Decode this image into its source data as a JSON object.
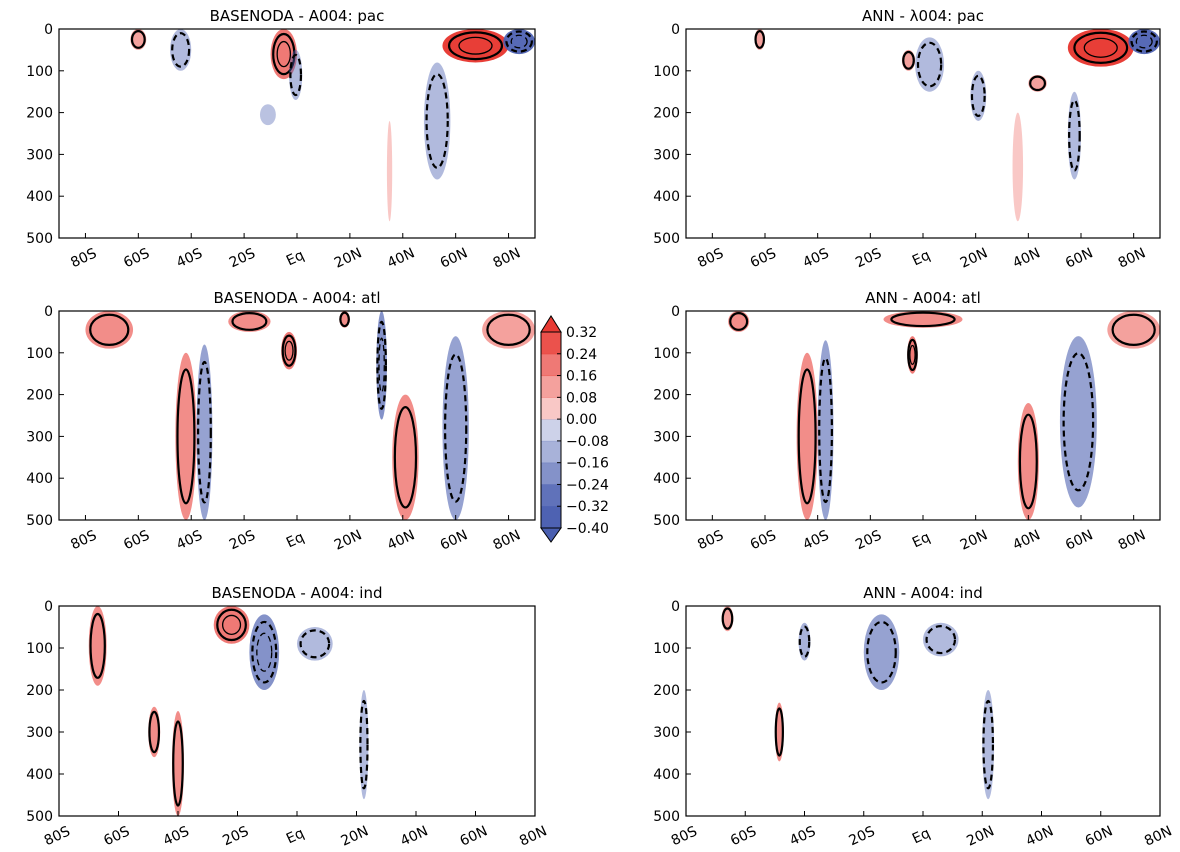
{
  "figure": {
    "colorbar": {
      "ticks": [
        "0.32",
        "0.24",
        "0.16",
        "0.08",
        "0.00",
        "−0.08",
        "−0.16",
        "−0.24",
        "−0.32",
        "−0.40"
      ],
      "values": [
        0.32,
        0.24,
        0.16,
        0.08,
        0.0,
        -0.08,
        -0.16,
        -0.24,
        -0.32,
        -0.4
      ],
      "extend": "both",
      "colormap": "diverging blue-white-red"
    },
    "colors": {
      "positive": "#e83a33",
      "negative": "#4a5fb0",
      "neutral": "#ffffff",
      "contour": "#000000"
    }
  },
  "chart_data": [
    {
      "type": "heatmap",
      "subtype": "latitude-depth section with contours",
      "title": "BASENODA - A004: pac",
      "x_ticks": [
        "80S",
        "60S",
        "40S",
        "20S",
        "Eq",
        "20N",
        "40N",
        "60N",
        "80N"
      ],
      "x_tick_values": [
        -80,
        -60,
        -40,
        -20,
        0,
        20,
        40,
        60,
        80
      ],
      "xlim": [
        -90,
        90
      ],
      "y_ticks": [
        "0",
        "100",
        "200",
        "300",
        "400",
        "500"
      ],
      "ylim": [
        500,
        0
      ],
      "features": [
        {
          "lat": [
            -63,
            -57
          ],
          "depth": [
            0,
            50
          ],
          "value": 0.12
        },
        {
          "lat": [
            -48,
            -40
          ],
          "depth": [
            0,
            100
          ],
          "value": -0.1
        },
        {
          "lat": [
            -10,
            0
          ],
          "depth": [
            0,
            120
          ],
          "value": 0.2
        },
        {
          "lat": [
            -14,
            -8
          ],
          "depth": [
            180,
            230
          ],
          "value": -0.08
        },
        {
          "lat": [
            -3,
            2
          ],
          "depth": [
            50,
            170
          ],
          "value": -0.1
        },
        {
          "lat": [
            34,
            36
          ],
          "depth": [
            220,
            460
          ],
          "value": 0.04
        },
        {
          "lat": [
            48,
            58
          ],
          "depth": [
            80,
            360
          ],
          "value": -0.1
        },
        {
          "lat": [
            55,
            80
          ],
          "depth": [
            0,
            80
          ],
          "value": 0.32
        },
        {
          "lat": [
            78,
            90
          ],
          "depth": [
            0,
            60
          ],
          "value": -0.3
        }
      ]
    },
    {
      "type": "heatmap",
      "subtype": "latitude-depth section with contours",
      "title": "ANN - λ004: pac",
      "x_ticks": [
        "80S",
        "60S",
        "40S",
        "20S",
        "Eq",
        "20N",
        "40N",
        "60N",
        "80N"
      ],
      "x_tick_values": [
        -80,
        -60,
        -40,
        -20,
        0,
        20,
        40,
        60,
        80
      ],
      "xlim": [
        -90,
        90
      ],
      "y_ticks": [
        "0",
        "100",
        "200",
        "300",
        "400",
        "500"
      ],
      "ylim": [
        500,
        0
      ],
      "features": [
        {
          "lat": [
            -64,
            -60
          ],
          "depth": [
            0,
            50
          ],
          "value": 0.12
        },
        {
          "lat": [
            -8,
            -3
          ],
          "depth": [
            50,
            100
          ],
          "value": 0.12
        },
        {
          "lat": [
            -3,
            8
          ],
          "depth": [
            20,
            150
          ],
          "value": -0.1
        },
        {
          "lat": [
            18,
            24
          ],
          "depth": [
            100,
            220
          ],
          "value": -0.1
        },
        {
          "lat": [
            34,
            38
          ],
          "depth": [
            200,
            460
          ],
          "value": 0.04
        },
        {
          "lat": [
            40,
            47
          ],
          "depth": [
            110,
            150
          ],
          "value": 0.12
        },
        {
          "lat": [
            55,
            60
          ],
          "depth": [
            150,
            360
          ],
          "value": -0.1
        },
        {
          "lat": [
            55,
            80
          ],
          "depth": [
            0,
            90
          ],
          "value": 0.32
        },
        {
          "lat": [
            78,
            90
          ],
          "depth": [
            0,
            60
          ],
          "value": -0.3
        }
      ]
    },
    {
      "type": "heatmap",
      "subtype": "latitude-depth section with contours",
      "title": "BASENODA - A004: atl",
      "x_ticks": [
        "80S",
        "60S",
        "40S",
        "20S",
        "Eq",
        "20N",
        "40N",
        "60N",
        "80N"
      ],
      "x_tick_values": [
        -80,
        -60,
        -40,
        -20,
        0,
        20,
        40,
        60,
        80
      ],
      "xlim": [
        -90,
        90
      ],
      "y_ticks": [
        "0",
        "100",
        "200",
        "300",
        "400",
        "500"
      ],
      "ylim": [
        500,
        0
      ],
      "features": [
        {
          "lat": [
            -80,
            -62
          ],
          "depth": [
            0,
            90
          ],
          "value": 0.16
        },
        {
          "lat": [
            -46,
            -38
          ],
          "depth": [
            100,
            500
          ],
          "value": 0.16
        },
        {
          "lat": [
            -38,
            -32
          ],
          "depth": [
            80,
            500
          ],
          "value": -0.16
        },
        {
          "lat": [
            -26,
            -10
          ],
          "depth": [
            0,
            50
          ],
          "value": 0.16
        },
        {
          "lat": [
            -6,
            0
          ],
          "depth": [
            50,
            140
          ],
          "value": 0.2
        },
        {
          "lat": [
            16,
            20
          ],
          "depth": [
            0,
            40
          ],
          "value": 0.16
        },
        {
          "lat": [
            30,
            34
          ],
          "depth": [
            0,
            260
          ],
          "value": -0.2
        },
        {
          "lat": [
            36,
            46
          ],
          "depth": [
            200,
            500
          ],
          "value": 0.16
        },
        {
          "lat": [
            55,
            65
          ],
          "depth": [
            60,
            500
          ],
          "value": -0.16
        },
        {
          "lat": [
            70,
            90
          ],
          "depth": [
            0,
            90
          ],
          "value": 0.12
        }
      ]
    },
    {
      "type": "heatmap",
      "subtype": "latitude-depth section with contours",
      "title": "ANN - A004: atl",
      "x_ticks": [
        "80S",
        "60S",
        "40S",
        "20S",
        "Eq",
        "20N",
        "40N",
        "60N",
        "80N"
      ],
      "x_tick_values": [
        -80,
        -60,
        -40,
        -20,
        0,
        20,
        40,
        60,
        80
      ],
      "xlim": [
        -90,
        90
      ],
      "y_ticks": [
        "0",
        "100",
        "200",
        "300",
        "400",
        "500"
      ],
      "ylim": [
        500,
        0
      ],
      "features": [
        {
          "lat": [
            -74,
            -66
          ],
          "depth": [
            0,
            50
          ],
          "value": 0.16
        },
        {
          "lat": [
            -48,
            -40
          ],
          "depth": [
            100,
            500
          ],
          "value": 0.16
        },
        {
          "lat": [
            -40,
            -34
          ],
          "depth": [
            70,
            500
          ],
          "value": -0.16
        },
        {
          "lat": [
            -15,
            15
          ],
          "depth": [
            0,
            40
          ],
          "value": 0.16
        },
        {
          "lat": [
            -6,
            -2
          ],
          "depth": [
            60,
            150
          ],
          "value": 0.2
        },
        {
          "lat": [
            36,
            44
          ],
          "depth": [
            220,
            500
          ],
          "value": 0.16
        },
        {
          "lat": [
            52,
            66
          ],
          "depth": [
            60,
            470
          ],
          "value": -0.16
        },
        {
          "lat": [
            70,
            90
          ],
          "depth": [
            0,
            90
          ],
          "value": 0.12
        }
      ]
    },
    {
      "type": "heatmap",
      "subtype": "latitude-depth section with contours",
      "title": "BASENODA - A004: ind",
      "x_ticks": [
        "80S",
        "60S",
        "40S",
        "20S",
        "Eq",
        "20N",
        "40N",
        "60N",
        "80N"
      ],
      "x_tick_values": [
        -80,
        -60,
        -40,
        -20,
        0,
        20,
        40,
        60,
        80
      ],
      "xlim": [
        -80,
        80
      ],
      "y_ticks": [
        "0",
        "100",
        "200",
        "300",
        "400",
        "500"
      ],
      "ylim": [
        500,
        0
      ],
      "features": [
        {
          "lat": [
            -70,
            -64
          ],
          "depth": [
            0,
            190
          ],
          "value": 0.16
        },
        {
          "lat": [
            -50,
            -46
          ],
          "depth": [
            240,
            360
          ],
          "value": 0.16
        },
        {
          "lat": [
            -42,
            -38
          ],
          "depth": [
            250,
            500
          ],
          "value": 0.16
        },
        {
          "lat": [
            -28,
            -16
          ],
          "depth": [
            0,
            90
          ],
          "value": 0.2
        },
        {
          "lat": [
            -16,
            -6
          ],
          "depth": [
            20,
            200
          ],
          "value": -0.2
        },
        {
          "lat": [
            0,
            12
          ],
          "depth": [
            50,
            130
          ],
          "value": -0.1
        },
        {
          "lat": [
            21,
            24
          ],
          "depth": [
            200,
            460
          ],
          "value": -0.1
        }
      ]
    },
    {
      "type": "heatmap",
      "subtype": "latitude-depth section with contours",
      "title": "ANN - A004: ind",
      "x_ticks": [
        "80S",
        "60S",
        "40S",
        "20S",
        "Eq",
        "20N",
        "40N",
        "60N",
        "80N"
      ],
      "x_tick_values": [
        -80,
        -60,
        -40,
        -20,
        0,
        20,
        40,
        60,
        80
      ],
      "xlim": [
        -80,
        80
      ],
      "y_ticks": [
        "0",
        "100",
        "200",
        "300",
        "400",
        "500"
      ],
      "ylim": [
        500,
        0
      ],
      "features": [
        {
          "lat": [
            -68,
            -64
          ],
          "depth": [
            0,
            60
          ],
          "value": 0.12
        },
        {
          "lat": [
            -50,
            -47
          ],
          "depth": [
            230,
            370
          ],
          "value": 0.16
        },
        {
          "lat": [
            -42,
            -38
          ],
          "depth": [
            40,
            130
          ],
          "value": -0.12
        },
        {
          "lat": [
            -20,
            -8
          ],
          "depth": [
            20,
            200
          ],
          "value": -0.16
        },
        {
          "lat": [
            0,
            12
          ],
          "depth": [
            40,
            120
          ],
          "value": -0.1
        },
        {
          "lat": [
            20,
            24
          ],
          "depth": [
            200,
            460
          ],
          "value": -0.1
        }
      ]
    }
  ]
}
